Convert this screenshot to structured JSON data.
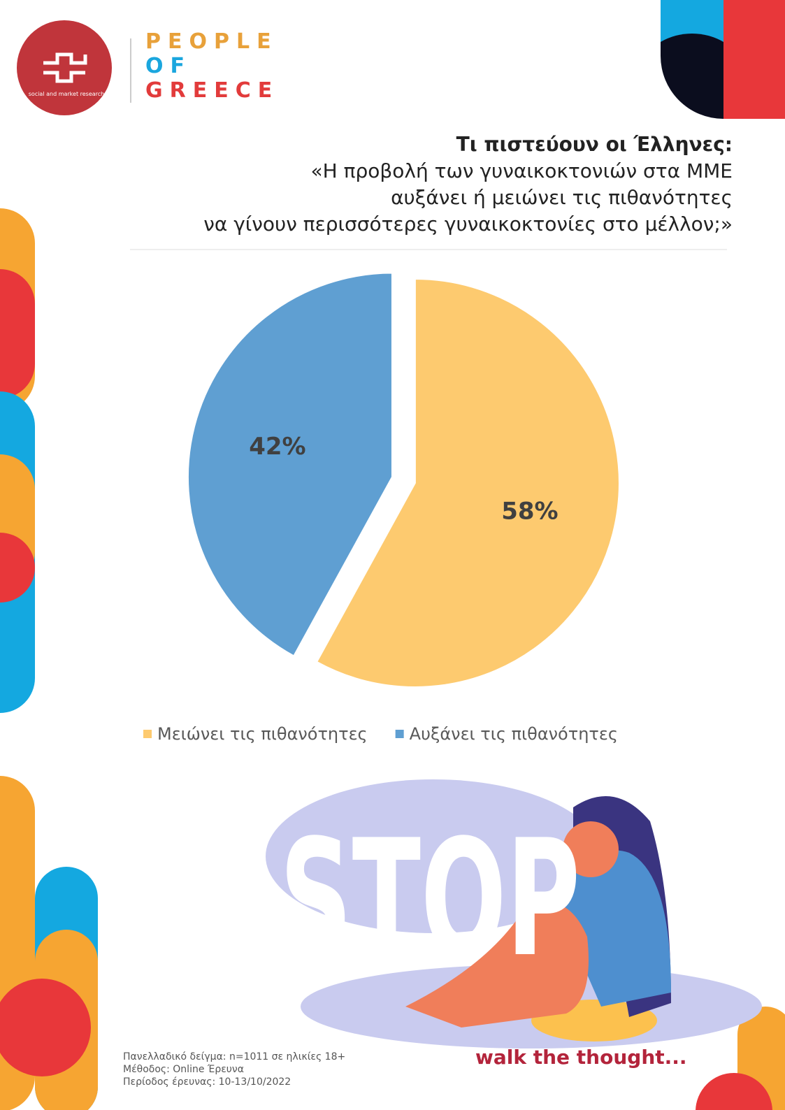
{
  "header": {
    "logo_text": "social and market research",
    "brand_lines": [
      "PEOPLE",
      "OF",
      "GREECE"
    ]
  },
  "chart_data": {
    "type": "pie",
    "title": "Τι πιστεύουν οι Έλληνες:",
    "subtitle_lines": [
      "«Η προβολή των γυναικοκτονιών στα ΜΜΕ",
      "αυξάνει ή μειώνει τις πιθανότητες",
      "να γίνουν περισσότερες γυναικοκτονίες στο μέλλον;»"
    ],
    "categories": [
      "Μειώνει τις πιθανότητες",
      "Αυξάνει τις πιθανότητες"
    ],
    "values": [
      58,
      42
    ],
    "value_labels": [
      "58%",
      "42%"
    ],
    "colors": [
      "#fdca6f",
      "#5f9fd2"
    ],
    "legend": "bottom"
  },
  "illustration": {
    "word": "STOP",
    "slogan": "walk the thought..."
  },
  "footer": {
    "lines": [
      "Πανελλαδικό δείγμα: n=1011 σε ηλικίες 18+",
      "Μέθοδος: Online Έρευνα",
      "Περίοδος έρευνας: 10-13/10/2022"
    ]
  }
}
